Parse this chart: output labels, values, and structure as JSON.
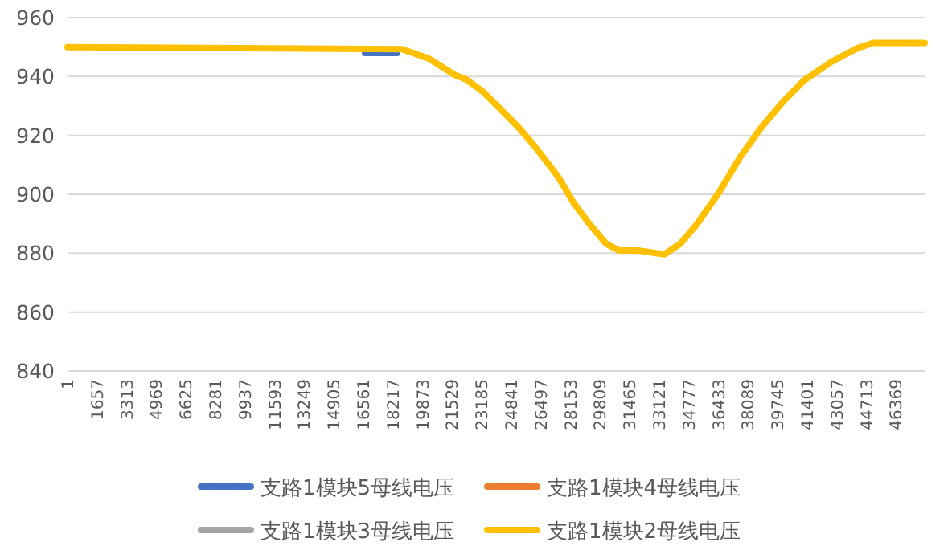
{
  "chart_data": {
    "type": "line",
    "x": [
      1,
      18721,
      20251,
      21691,
      22321,
      23221,
      24121,
      25291,
      26191,
      27451,
      28351,
      29251,
      30151,
      30871,
      31951,
      33391,
      34291,
      35191,
      36451,
      37621,
      38791,
      40051,
      41221,
      42751,
      44191,
      45091,
      47971
    ],
    "series": [
      {
        "name": "支路1模块5母线电压",
        "color": "#4472c4",
        "x": [
          16651,
          18451
        ],
        "values": [
          948,
          948
        ]
      },
      {
        "name": "支路1模块4母线电压",
        "color": "#ed7d31",
        "values": [
          null,
          null,
          null,
          null,
          null,
          null,
          null,
          null,
          null,
          null,
          null,
          null,
          null,
          null,
          null,
          null,
          null,
          null,
          null,
          null,
          null,
          null,
          null,
          null,
          null,
          null,
          null
        ]
      },
      {
        "name": "支路1模块3母线电压",
        "color": "#a5a5a5",
        "values": [
          null,
          null,
          null,
          null,
          null,
          null,
          null,
          null,
          null,
          null,
          null,
          null,
          null,
          null,
          null,
          null,
          null,
          null,
          null,
          null,
          null,
          null,
          null,
          null,
          null,
          null,
          null
        ]
      },
      {
        "name": "支路1模块2母线电压",
        "color": "#ffc000",
        "values": [
          950,
          949.3,
          946,
          940.5,
          939,
          935,
          929.6,
          922.4,
          916,
          906,
          896.9,
          889.6,
          883.2,
          880.9,
          880.9,
          879.6,
          883.2,
          889.6,
          900.5,
          912.4,
          922.4,
          931.5,
          938.7,
          945,
          949.6,
          951.4,
          951.4
        ]
      }
    ],
    "xlim": [
      1,
      47971
    ],
    "ylim": [
      840,
      960
    ],
    "xticks": [
      1,
      1657,
      3313,
      4969,
      6625,
      8281,
      9937,
      11593,
      13249,
      14905,
      16561,
      18217,
      19873,
      21529,
      23185,
      24841,
      26497,
      28153,
      29809,
      31465,
      33121,
      34777,
      36433,
      38089,
      39745,
      41401,
      43057,
      44713,
      46369
    ],
    "yticks": [
      840,
      860,
      880,
      900,
      920,
      940,
      960
    ],
    "grid": "y",
    "legend": "bottom"
  }
}
